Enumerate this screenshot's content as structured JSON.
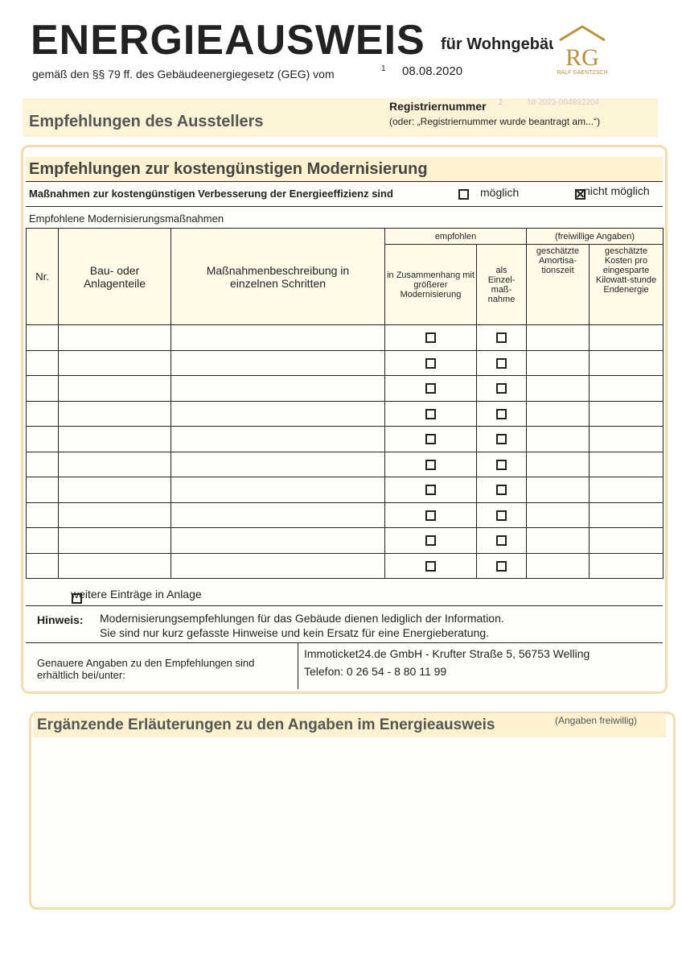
{
  "header": {
    "title": "ENERGIEAUSWEIS",
    "title_suffix": "für Wohngebäude",
    "subtitle": "gemäß den §§ 79 ff. des Gebäudeenergiegesetz (GEG) vom",
    "footnote": "1",
    "date": "08.08.2020",
    "logo_initials": "RG",
    "logo_name": "RALF GAENTZSCH"
  },
  "section": {
    "title": "Empfehlungen des Ausstellers",
    "registration_label": "Registriernummer",
    "registration_footnote": "2",
    "registration_number": "NI-2023-004892204",
    "registration_note": "(oder: „Registriernummer wurde beantragt am...“)"
  },
  "recommendations": {
    "title": "Empfehlungen zur kostengünstigen Modernisierung",
    "measures_text": "Maßnahmen zur kostengünstigen Verbesserung der Energieeffizienz sind",
    "option_possible": "möglich",
    "option_possible_checked": false,
    "option_not_possible": "nicht möglich",
    "option_not_possible_checked": true,
    "table_caption": "Empfohlene Modernisierungsmaßnahmen",
    "table": {
      "headers": {
        "nr": "Nr.",
        "component": "Bau- oder Anlagenteile",
        "description": "Maßnahmenbeschreibung in einzelnen Schritten",
        "recommended": "empfohlen",
        "with_modernization": "in Zusammenhang mit größerer Modernisierung",
        "single": "als Einzel-maß-nahme",
        "voluntary": "(freiwillige Angaben)",
        "payback": "geschätzte Amortisa-tionszeit",
        "cost": "geschätzte Kosten pro eingesparte Kilowatt-stunde Endenergie"
      }
    },
    "more_entries": "weitere Einträge in Anlage",
    "note_label": "Hinweis:",
    "note_line1": "Modernisierungsempfehlungen für das Gebäude dienen lediglich der Information.",
    "note_line2": "Sie sind nur kurz gefasste Hinweise und kein Ersatz für eine Energieberatung.",
    "contact_label": "Genauere Angaben zu den Empfehlungen sind erhältlich bei/unter:",
    "contact_address": "Immoticket24.de GmbH - Krufter Straße 5, 56753 Welling",
    "contact_phone": "Telefon: 0 26 54 - 8 80 11 99"
  },
  "explanations": {
    "title": "Ergänzende Erläuterungen zu den Angaben im Energieausweis",
    "title_note": "(Angaben freiwillig)"
  }
}
